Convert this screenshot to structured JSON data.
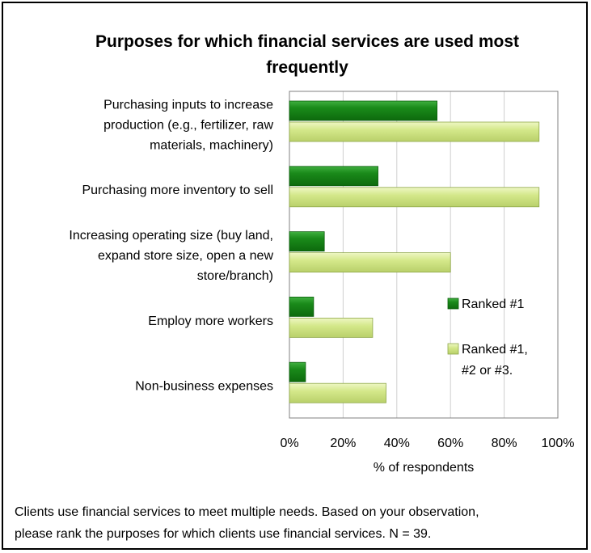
{
  "colors": {
    "ranked1": "#1a8a1a",
    "ranked1_top": "#40b040",
    "ranked123": "#d4e88a",
    "ranked123_top": "#eef7c4",
    "border": "#000000",
    "axis": "#808080"
  },
  "footnote": [
    "Clients use financial services to meet multiple needs. Based on your observation,",
    "please rank the purposes for which clients use financial services. N = 39."
  ],
  "chart_data": {
    "type": "bar",
    "orientation": "horizontal",
    "title": "Purposes for which financial services are used most frequently",
    "title_lines": [
      "Purposes for which financial services are used most",
      "frequently"
    ],
    "xlabel": "% of respondents",
    "ylabel": "",
    "xlim": [
      0,
      100
    ],
    "x_ticks": [
      "0%",
      "20%",
      "40%",
      "60%",
      "80%",
      "100%"
    ],
    "grid": "vertical",
    "legend_position": "right",
    "categories": [
      [
        "Purchasing inputs to increase",
        "production (e.g., fertilizer, raw",
        "materials, machinery)"
      ],
      [
        "Purchasing more inventory to sell"
      ],
      [
        "Increasing operating size (buy land,",
        "expand store size, open a new",
        "store/branch)"
      ],
      [
        "Employ more workers"
      ],
      [
        "Non-business expenses"
      ]
    ],
    "series": [
      {
        "name": "Ranked #1",
        "legend_lines": [
          "Ranked #1"
        ],
        "values": [
          55,
          33,
          13,
          9,
          6
        ]
      },
      {
        "name": "Ranked #1, #2 or #3.",
        "legend_lines": [
          "Ranked #1,",
          "#2 or #3."
        ],
        "values": [
          93,
          93,
          60,
          31,
          36
        ]
      }
    ]
  }
}
